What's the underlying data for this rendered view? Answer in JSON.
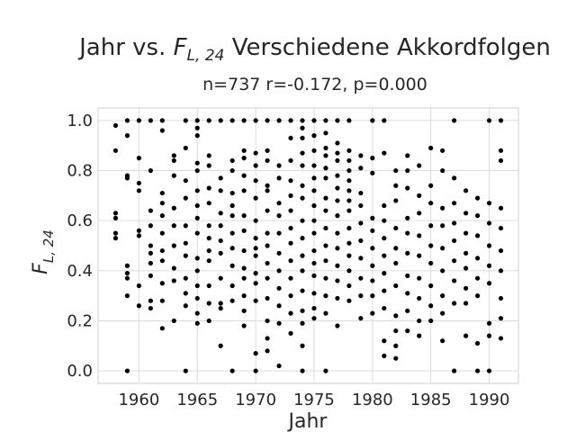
{
  "chart_data": {
    "type": "scatter",
    "title_prefix": "Jahr vs. ",
    "title_symbol": "F",
    "title_subscript": "L, 24",
    "title_suffix": " Verschiedene Akkordfolgen",
    "subtitle": "n=737 r=-0.172, p=0.000",
    "xlabel": "Jahr",
    "ylabel_symbol": "F",
    "ylabel_subscript": "L, 24",
    "xlim": [
      1956.5,
      1992.5
    ],
    "ylim": [
      -0.05,
      1.05
    ],
    "xticks": [
      1960,
      1965,
      1970,
      1975,
      1980,
      1985,
      1990
    ],
    "yticks": [
      0.0,
      0.2,
      0.4,
      0.6,
      0.8,
      1.0
    ],
    "ytick_labels": [
      "0.0",
      "0.2",
      "0.4",
      "0.6",
      "0.8",
      "1.0"
    ],
    "grid": true,
    "marker_color": "#000000",
    "points": [
      [
        1958,
        0.98
      ],
      [
        1958,
        0.88
      ],
      [
        1958,
        0.63
      ],
      [
        1958,
        0.61
      ],
      [
        1958,
        0.55
      ],
      [
        1958,
        0.53
      ],
      [
        1959,
        1.0
      ],
      [
        1959,
        0.94
      ],
      [
        1959,
        0.78
      ],
      [
        1959,
        0.77
      ],
      [
        1959,
        0.42
      ],
      [
        1959,
        0.39
      ],
      [
        1959,
        0.37
      ],
      [
        1959,
        0.3
      ],
      [
        1959,
        0.0
      ],
      [
        1960,
        1.0
      ],
      [
        1960,
        0.85
      ],
      [
        1960,
        0.75
      ],
      [
        1960,
        0.72
      ],
      [
        1960,
        0.56
      ],
      [
        1960,
        0.54
      ],
      [
        1960,
        0.34
      ],
      [
        1960,
        0.26
      ],
      [
        1961,
        1.0
      ],
      [
        1961,
        0.8
      ],
      [
        1961,
        0.64
      ],
      [
        1961,
        0.58
      ],
      [
        1961,
        0.5
      ],
      [
        1961,
        0.47
      ],
      [
        1961,
        0.43
      ],
      [
        1961,
        0.38
      ],
      [
        1961,
        0.28
      ],
      [
        1961,
        0.25
      ],
      [
        1962,
        1.0
      ],
      [
        1962,
        0.96
      ],
      [
        1962,
        0.71
      ],
      [
        1962,
        0.67
      ],
      [
        1962,
        0.62
      ],
      [
        1962,
        0.55
      ],
      [
        1962,
        0.48
      ],
      [
        1962,
        0.44
      ],
      [
        1962,
        0.35
      ],
      [
        1962,
        0.28
      ],
      [
        1962,
        0.17
      ],
      [
        1963,
        0.86
      ],
      [
        1963,
        0.84
      ],
      [
        1963,
        0.78
      ],
      [
        1963,
        0.65
      ],
      [
        1963,
        0.58
      ],
      [
        1963,
        0.5
      ],
      [
        1963,
        0.41
      ],
      [
        1963,
        0.36
      ],
      [
        1963,
        0.2
      ],
      [
        1964,
        1.0
      ],
      [
        1964,
        0.89
      ],
      [
        1964,
        0.76
      ],
      [
        1964,
        0.69
      ],
      [
        1964,
        0.58
      ],
      [
        1964,
        0.51
      ],
      [
        1964,
        0.46
      ],
      [
        1964,
        0.37
      ],
      [
        1964,
        0.31
      ],
      [
        1964,
        0.26
      ],
      [
        1964,
        0.0
      ],
      [
        1965,
        1.0
      ],
      [
        1965,
        0.97
      ],
      [
        1965,
        0.94
      ],
      [
        1965,
        0.83
      ],
      [
        1965,
        0.8
      ],
      [
        1965,
        0.72
      ],
      [
        1965,
        0.66
      ],
      [
        1965,
        0.61
      ],
      [
        1965,
        0.55
      ],
      [
        1965,
        0.45
      ],
      [
        1965,
        0.4
      ],
      [
        1965,
        0.34
      ],
      [
        1965,
        0.29
      ],
      [
        1965,
        0.23
      ],
      [
        1965,
        0.19
      ],
      [
        1966,
        1.0
      ],
      [
        1966,
        0.86
      ],
      [
        1966,
        0.82
      ],
      [
        1966,
        0.73
      ],
      [
        1966,
        0.67
      ],
      [
        1966,
        0.58
      ],
      [
        1966,
        0.53
      ],
      [
        1966,
        0.48
      ],
      [
        1966,
        0.44
      ],
      [
        1966,
        0.34
      ],
      [
        1966,
        0.27
      ],
      [
        1966,
        0.2
      ],
      [
        1967,
        1.0
      ],
      [
        1967,
        0.77
      ],
      [
        1967,
        0.72
      ],
      [
        1967,
        0.63
      ],
      [
        1967,
        0.58
      ],
      [
        1967,
        0.52
      ],
      [
        1967,
        0.47
      ],
      [
        1967,
        0.37
      ],
      [
        1967,
        0.27
      ],
      [
        1967,
        0.25
      ],
      [
        1967,
        0.1
      ],
      [
        1968,
        1.0
      ],
      [
        1968,
        0.84
      ],
      [
        1968,
        0.8
      ],
      [
        1968,
        0.71
      ],
      [
        1968,
        0.66
      ],
      [
        1968,
        0.62
      ],
      [
        1968,
        0.55
      ],
      [
        1968,
        0.49
      ],
      [
        1968,
        0.42
      ],
      [
        1968,
        0.34
      ],
      [
        1968,
        0.28
      ],
      [
        1968,
        0.0
      ],
      [
        1969,
        1.0
      ],
      [
        1969,
        0.88
      ],
      [
        1969,
        0.85
      ],
      [
        1969,
        0.78
      ],
      [
        1969,
        0.72
      ],
      [
        1969,
        0.62
      ],
      [
        1969,
        0.56
      ],
      [
        1969,
        0.48
      ],
      [
        1969,
        0.41
      ],
      [
        1969,
        0.37
      ],
      [
        1969,
        0.3
      ],
      [
        1969,
        0.24
      ],
      [
        1969,
        0.18
      ],
      [
        1970,
        1.0
      ],
      [
        1970,
        0.87
      ],
      [
        1970,
        0.82
      ],
      [
        1970,
        0.76
      ],
      [
        1970,
        0.69
      ],
      [
        1970,
        0.6
      ],
      [
        1970,
        0.53
      ],
      [
        1970,
        0.49
      ],
      [
        1970,
        0.46
      ],
      [
        1970,
        0.39
      ],
      [
        1970,
        0.35
      ],
      [
        1970,
        0.28
      ],
      [
        1970,
        0.07
      ],
      [
        1970,
        0.0
      ],
      [
        1971,
        1.0
      ],
      [
        1971,
        0.88
      ],
      [
        1971,
        0.84
      ],
      [
        1971,
        0.74
      ],
      [
        1971,
        0.72
      ],
      [
        1971,
        0.64
      ],
      [
        1971,
        0.55
      ],
      [
        1971,
        0.5
      ],
      [
        1971,
        0.43
      ],
      [
        1971,
        0.37
      ],
      [
        1971,
        0.29
      ],
      [
        1971,
        0.2
      ],
      [
        1971,
        0.13
      ],
      [
        1971,
        0.08
      ],
      [
        1972,
        1.0
      ],
      [
        1972,
        0.82
      ],
      [
        1972,
        0.77
      ],
      [
        1972,
        0.67
      ],
      [
        1972,
        0.62
      ],
      [
        1972,
        0.55
      ],
      [
        1972,
        0.47
      ],
      [
        1972,
        0.4
      ],
      [
        1972,
        0.33
      ],
      [
        1972,
        0.26
      ],
      [
        1972,
        0.19
      ],
      [
        1972,
        0.02
      ],
      [
        1973,
        1.0
      ],
      [
        1973,
        0.93
      ],
      [
        1973,
        0.84
      ],
      [
        1973,
        0.76
      ],
      [
        1973,
        0.7
      ],
      [
        1973,
        0.64
      ],
      [
        1973,
        0.57
      ],
      [
        1973,
        0.51
      ],
      [
        1973,
        0.44
      ],
      [
        1973,
        0.37
      ],
      [
        1973,
        0.3
      ],
      [
        1973,
        0.23
      ],
      [
        1973,
        0.15
      ],
      [
        1974,
        1.0
      ],
      [
        1974,
        0.97
      ],
      [
        1974,
        0.93
      ],
      [
        1974,
        0.87
      ],
      [
        1974,
        0.82
      ],
      [
        1974,
        0.74
      ],
      [
        1974,
        0.69
      ],
      [
        1974,
        0.6
      ],
      [
        1974,
        0.53
      ],
      [
        1974,
        0.46
      ],
      [
        1974,
        0.4
      ],
      [
        1974,
        0.32
      ],
      [
        1974,
        0.24
      ],
      [
        1974,
        0.19
      ],
      [
        1974,
        0.1
      ],
      [
        1974,
        0.0
      ],
      [
        1975,
        1.0
      ],
      [
        1975,
        0.94
      ],
      [
        1975,
        0.88
      ],
      [
        1975,
        0.82
      ],
      [
        1975,
        0.77
      ],
      [
        1975,
        0.72
      ],
      [
        1975,
        0.66
      ],
      [
        1975,
        0.6
      ],
      [
        1975,
        0.55
      ],
      [
        1975,
        0.48
      ],
      [
        1975,
        0.43
      ],
      [
        1975,
        0.38
      ],
      [
        1975,
        0.31
      ],
      [
        1975,
        0.25
      ],
      [
        1975,
        0.21
      ],
      [
        1976,
        1.0
      ],
      [
        1976,
        0.95
      ],
      [
        1976,
        0.89
      ],
      [
        1976,
        0.86
      ],
      [
        1976,
        0.81
      ],
      [
        1976,
        0.77
      ],
      [
        1976,
        0.69
      ],
      [
        1976,
        0.64
      ],
      [
        1976,
        0.57
      ],
      [
        1976,
        0.5
      ],
      [
        1976,
        0.44
      ],
      [
        1976,
        0.37
      ],
      [
        1976,
        0.3
      ],
      [
        1976,
        0.23
      ],
      [
        1976,
        0.0
      ],
      [
        1977,
        1.0
      ],
      [
        1977,
        0.91
      ],
      [
        1977,
        0.87
      ],
      [
        1977,
        0.84
      ],
      [
        1977,
        0.78
      ],
      [
        1977,
        0.73
      ],
      [
        1977,
        0.68
      ],
      [
        1977,
        0.62
      ],
      [
        1977,
        0.55
      ],
      [
        1977,
        0.49
      ],
      [
        1977,
        0.42
      ],
      [
        1977,
        0.36
      ],
      [
        1977,
        0.29
      ],
      [
        1977,
        0.18
      ],
      [
        1978,
        1.0
      ],
      [
        1978,
        0.88
      ],
      [
        1978,
        0.84
      ],
      [
        1978,
        0.8
      ],
      [
        1978,
        0.76
      ],
      [
        1978,
        0.72
      ],
      [
        1978,
        0.68
      ],
      [
        1978,
        0.64
      ],
      [
        1978,
        0.57
      ],
      [
        1978,
        0.51
      ],
      [
        1978,
        0.46
      ],
      [
        1978,
        0.4
      ],
      [
        1978,
        0.34
      ],
      [
        1978,
        0.28
      ],
      [
        1979,
        0.86
      ],
      [
        1979,
        0.81
      ],
      [
        1979,
        0.71
      ],
      [
        1979,
        0.66
      ],
      [
        1979,
        0.59
      ],
      [
        1979,
        0.52
      ],
      [
        1979,
        0.45
      ],
      [
        1979,
        0.37
      ],
      [
        1979,
        0.3
      ],
      [
        1979,
        0.21
      ],
      [
        1980,
        1.0
      ],
      [
        1980,
        0.85
      ],
      [
        1980,
        0.79
      ],
      [
        1980,
        0.61
      ],
      [
        1980,
        0.56
      ],
      [
        1980,
        0.49
      ],
      [
        1980,
        0.42
      ],
      [
        1980,
        0.36
      ],
      [
        1980,
        0.3
      ],
      [
        1980,
        0.23
      ],
      [
        1981,
        1.0
      ],
      [
        1981,
        0.87
      ],
      [
        1981,
        0.66
      ],
      [
        1981,
        0.6
      ],
      [
        1981,
        0.53
      ],
      [
        1981,
        0.46
      ],
      [
        1981,
        0.39
      ],
      [
        1981,
        0.32
      ],
      [
        1981,
        0.25
      ],
      [
        1981,
        0.12
      ],
      [
        1981,
        0.06
      ],
      [
        1982,
        0.8
      ],
      [
        1982,
        0.74
      ],
      [
        1982,
        0.68
      ],
      [
        1982,
        0.57
      ],
      [
        1982,
        0.49
      ],
      [
        1982,
        0.43
      ],
      [
        1982,
        0.34
      ],
      [
        1982,
        0.22
      ],
      [
        1982,
        0.16
      ],
      [
        1982,
        0.1
      ],
      [
        1982,
        0.05
      ],
      [
        1983,
        0.86
      ],
      [
        1983,
        0.8
      ],
      [
        1983,
        0.73
      ],
      [
        1983,
        0.61
      ],
      [
        1983,
        0.55
      ],
      [
        1983,
        0.47
      ],
      [
        1983,
        0.38
      ],
      [
        1983,
        0.31
      ],
      [
        1983,
        0.24
      ],
      [
        1983,
        0.16
      ],
      [
        1984,
        0.82
      ],
      [
        1984,
        0.7
      ],
      [
        1984,
        0.63
      ],
      [
        1984,
        0.54
      ],
      [
        1984,
        0.46
      ],
      [
        1984,
        0.37
      ],
      [
        1984,
        0.29
      ],
      [
        1984,
        0.2
      ],
      [
        1984,
        0.14
      ],
      [
        1985,
        0.89
      ],
      [
        1985,
        0.74
      ],
      [
        1985,
        0.67
      ],
      [
        1985,
        0.58
      ],
      [
        1985,
        0.5
      ],
      [
        1985,
        0.43
      ],
      [
        1985,
        0.34
      ],
      [
        1985,
        0.26
      ],
      [
        1985,
        0.2
      ],
      [
        1986,
        0.88
      ],
      [
        1986,
        0.8
      ],
      [
        1986,
        0.65
      ],
      [
        1986,
        0.58
      ],
      [
        1986,
        0.49
      ],
      [
        1986,
        0.4
      ],
      [
        1986,
        0.3
      ],
      [
        1986,
        0.23
      ],
      [
        1986,
        0.12
      ],
      [
        1987,
        1.0
      ],
      [
        1987,
        0.77
      ],
      [
        1987,
        0.67
      ],
      [
        1987,
        0.59
      ],
      [
        1987,
        0.52
      ],
      [
        1987,
        0.44
      ],
      [
        1987,
        0.36
      ],
      [
        1987,
        0.27
      ],
      [
        1987,
        0.0
      ],
      [
        1988,
        0.72
      ],
      [
        1988,
        0.63
      ],
      [
        1988,
        0.55
      ],
      [
        1988,
        0.47
      ],
      [
        1988,
        0.41
      ],
      [
        1988,
        0.33
      ],
      [
        1988,
        0.27
      ],
      [
        1988,
        0.14
      ],
      [
        1989,
        0.69
      ],
      [
        1989,
        0.62
      ],
      [
        1989,
        0.54
      ],
      [
        1989,
        0.45
      ],
      [
        1989,
        0.37
      ],
      [
        1989,
        0.3
      ],
      [
        1989,
        0.11
      ],
      [
        1989,
        0.0
      ],
      [
        1990,
        1.0
      ],
      [
        1990,
        0.67
      ],
      [
        1990,
        0.59
      ],
      [
        1990,
        0.5
      ],
      [
        1990,
        0.42
      ],
      [
        1990,
        0.35
      ],
      [
        1990,
        0.19
      ],
      [
        1990,
        0.14
      ],
      [
        1990,
        0.0
      ],
      [
        1991,
        1.0
      ],
      [
        1991,
        0.88
      ],
      [
        1991,
        0.84
      ],
      [
        1991,
        0.65
      ],
      [
        1991,
        0.57
      ],
      [
        1991,
        0.48
      ],
      [
        1991,
        0.4
      ],
      [
        1991,
        0.29
      ],
      [
        1991,
        0.21
      ],
      [
        1991,
        0.13
      ]
    ]
  }
}
